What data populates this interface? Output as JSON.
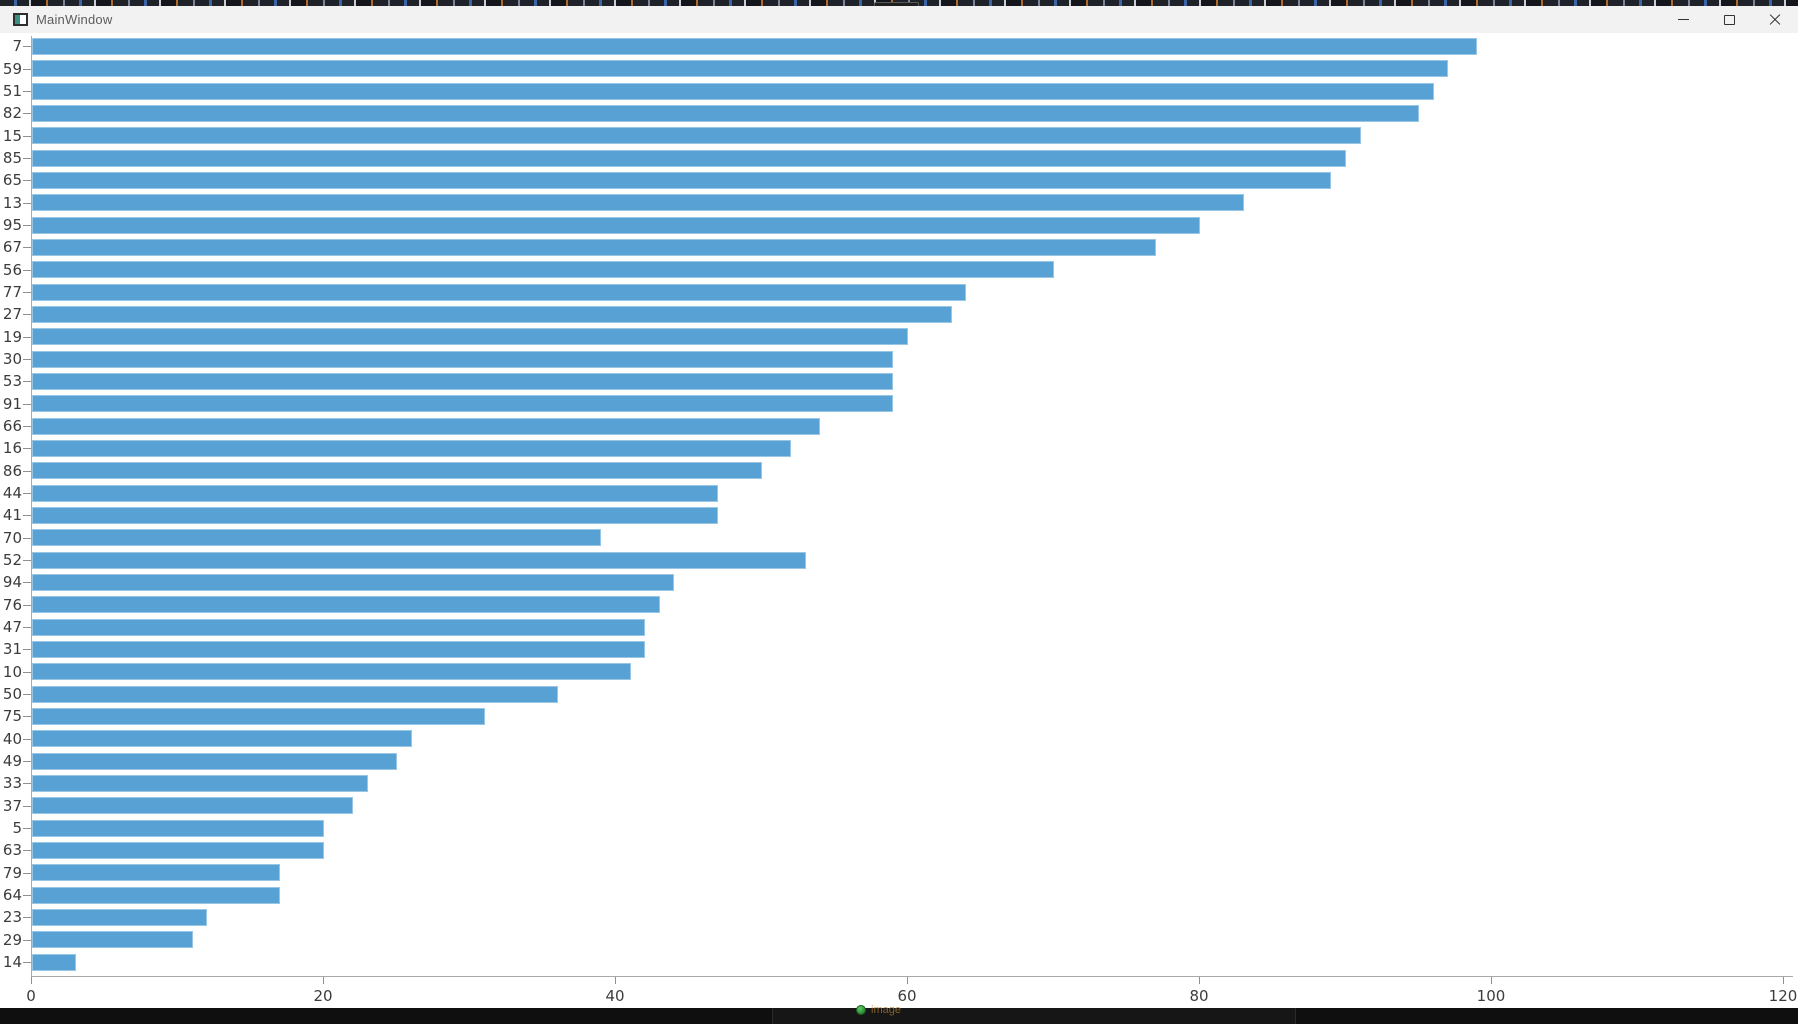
{
  "window": {
    "title": "MainWindow",
    "controls": {
      "minimize": "minimize",
      "maximize": "maximize",
      "close": "close"
    }
  },
  "chart_data": {
    "type": "bar",
    "orientation": "horizontal",
    "title": "",
    "xlabel": "",
    "ylabel": "",
    "grid": false,
    "legend": null,
    "bar_color": "#58a1d4",
    "xlim": [
      0,
      120
    ],
    "x_ticks": [
      0,
      20,
      40,
      60,
      80,
      100,
      120
    ],
    "categories": [
      7,
      59,
      51,
      82,
      15,
      85,
      65,
      13,
      95,
      67,
      56,
      77,
      27,
      19,
      30,
      53,
      91,
      66,
      16,
      86,
      44,
      41,
      70,
      52,
      94,
      76,
      47,
      31,
      10,
      50,
      75,
      40,
      49,
      33,
      37,
      5,
      63,
      79,
      64,
      23,
      29,
      14
    ],
    "values": [
      99,
      97,
      96,
      95,
      91,
      90,
      89,
      83,
      80,
      77,
      70,
      64,
      63,
      60,
      59,
      59,
      59,
      54,
      52,
      50,
      47,
      47,
      39,
      53,
      44,
      43,
      42,
      42,
      41,
      36,
      31,
      26,
      25,
      23,
      22,
      20,
      20,
      17,
      17,
      12,
      11,
      3
    ]
  },
  "overlay": {
    "status_text": "image",
    "status_dot_color": "#3fae49"
  }
}
